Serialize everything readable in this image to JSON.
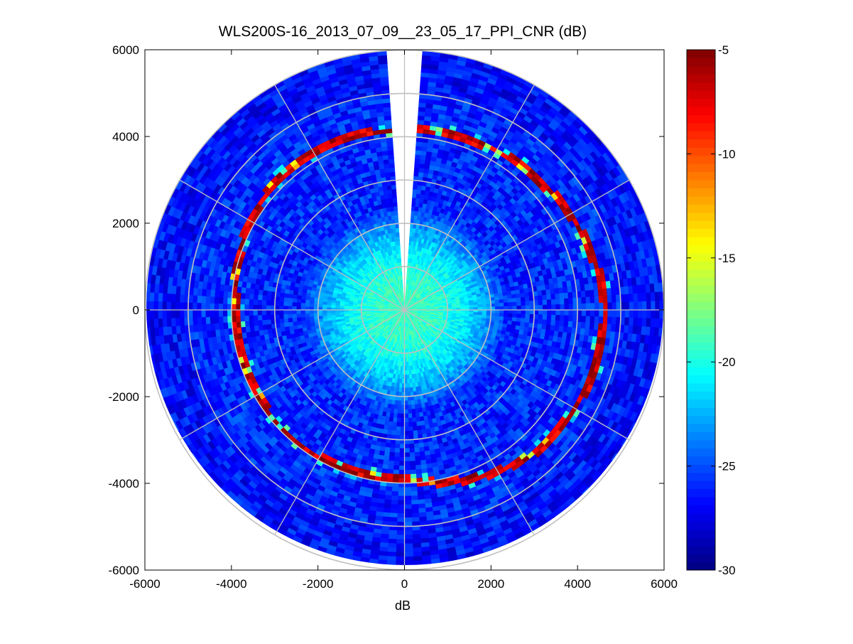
{
  "chart_data": {
    "type": "heatmap",
    "subtype": "polar-ppi",
    "title": "WLS200S-16_2013_07_09__23_05_17_PPI_CNR (dB)",
    "xlabel": "dB",
    "ylabel": "",
    "xlim": [
      -6000,
      6000
    ],
    "ylim": [
      -6000,
      6000
    ],
    "x_ticks": [
      -6000,
      -4000,
      -2000,
      0,
      2000,
      4000,
      6000
    ],
    "y_ticks": [
      6000,
      4000,
      2000,
      0,
      -2000,
      -4000,
      -6000
    ],
    "x_tick_labels": [
      "-6000",
      "-4000",
      "-2000",
      "0",
      "2000",
      "4000",
      "6000"
    ],
    "y_tick_labels": [
      "6000",
      "4000",
      "2000",
      "0",
      "-2000",
      "-4000",
      "-6000"
    ],
    "max_range": 6000,
    "range_rings": [
      1000,
      2000,
      3000,
      4000,
      5000,
      6000
    ],
    "spoke_angles_deg": [
      0,
      30,
      60,
      90,
      120,
      150,
      180,
      210,
      240,
      270,
      300,
      330
    ],
    "colormap": "jet",
    "colorbar": {
      "min": -30,
      "max": -5,
      "ticks": [
        -5,
        -10,
        -15,
        -20,
        -25,
        -30
      ],
      "tick_labels": [
        "-5",
        "-10",
        "-15",
        "-20",
        "-25",
        "-30"
      ],
      "placement": "right"
    },
    "data_gap_sector_deg": [
      -4,
      4
    ],
    "field": {
      "background_cnr": -26,
      "near_range_cnr": -19,
      "near_range_extent": 2400,
      "hard_target_ring": {
        "cnr": -5,
        "radius_profile": [
          {
            "azimuth_deg": 0,
            "range": 4150
          },
          {
            "azimuth_deg": 45,
            "range": 4300
          },
          {
            "azimuth_deg": 90,
            "range": 4650
          },
          {
            "azimuth_deg": 135,
            "range": 4500
          },
          {
            "azimuth_deg": 180,
            "range": 3920
          },
          {
            "azimuth_deg": 225,
            "range": 3950
          },
          {
            "azimuth_deg": 270,
            "range": 3900
          },
          {
            "azimuth_deg": 315,
            "range": 4200
          },
          {
            "azimuth_deg": 360,
            "range": 4150
          }
        ]
      }
    },
    "grid": true,
    "grid_color": "#c0c0c0"
  }
}
